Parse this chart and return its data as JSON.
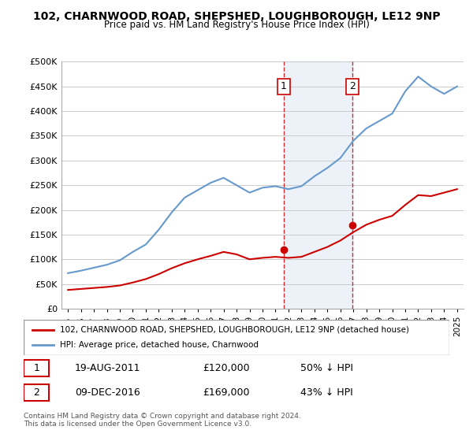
{
  "title": "102, CHARNWOOD ROAD, SHEPSHED, LOUGHBOROUGH, LE12 9NP",
  "subtitle": "Price paid vs. HM Land Registry's House Price Index (HPI)",
  "legend_line1": "102, CHARNWOOD ROAD, SHEPSHED, LOUGHBOROUGH, LE12 9NP (detached house)",
  "legend_line2": "HPI: Average price, detached house, Charnwood",
  "table_row1": [
    "1",
    "19-AUG-2011",
    "£120,000",
    "50% ↓ HPI"
  ],
  "table_row2": [
    "2",
    "09-DEC-2016",
    "£169,000",
    "43% ↓ HPI"
  ],
  "footer": "Contains HM Land Registry data © Crown copyright and database right 2024.\nThis data is licensed under the Open Government Licence v3.0.",
  "price_color": "#cc0000",
  "hpi_color": "#6699cc",
  "vline_color": "#cc0000",
  "background_color": "#f0f4ff",
  "ylim": [
    0,
    500000
  ],
  "yticks": [
    0,
    50000,
    100000,
    150000,
    200000,
    250000,
    300000,
    350000,
    400000,
    450000,
    500000
  ],
  "ytick_labels": [
    "£0",
    "£50K",
    "£100K",
    "£150K",
    "£200K",
    "£250K",
    "£300K",
    "£350K",
    "£400K",
    "£450K",
    "£500K"
  ],
  "sale1_year": 2011.63,
  "sale1_price": 120000,
  "sale2_year": 2016.94,
  "sale2_price": 169000,
  "hpi_years": [
    1995,
    1996,
    1997,
    1998,
    1999,
    2000,
    2001,
    2002,
    2003,
    2004,
    2005,
    2006,
    2007,
    2008,
    2009,
    2010,
    2011,
    2012,
    2013,
    2014,
    2015,
    2016,
    2017,
    2018,
    2019,
    2020,
    2021,
    2022,
    2023,
    2024,
    2025
  ],
  "hpi_values": [
    72000,
    77000,
    83000,
    89000,
    98000,
    115000,
    130000,
    160000,
    195000,
    225000,
    240000,
    255000,
    265000,
    250000,
    235000,
    245000,
    248000,
    242000,
    248000,
    268000,
    285000,
    305000,
    340000,
    365000,
    380000,
    395000,
    440000,
    470000,
    450000,
    435000,
    450000
  ],
  "price_years": [
    1995,
    1996,
    1997,
    1998,
    1999,
    2000,
    2001,
    2002,
    2003,
    2004,
    2005,
    2006,
    2007,
    2008,
    2009,
    2010,
    2011,
    2012,
    2013,
    2014,
    2015,
    2016,
    2017,
    2018,
    2019,
    2020,
    2021,
    2022,
    2023,
    2024,
    2025
  ],
  "price_values": [
    38000,
    40000,
    42000,
    44000,
    47000,
    53000,
    60000,
    70000,
    82000,
    92000,
    100000,
    107000,
    115000,
    110000,
    100000,
    103000,
    105000,
    103000,
    105000,
    115000,
    125000,
    138000,
    155000,
    170000,
    180000,
    188000,
    210000,
    230000,
    228000,
    235000,
    242000
  ]
}
